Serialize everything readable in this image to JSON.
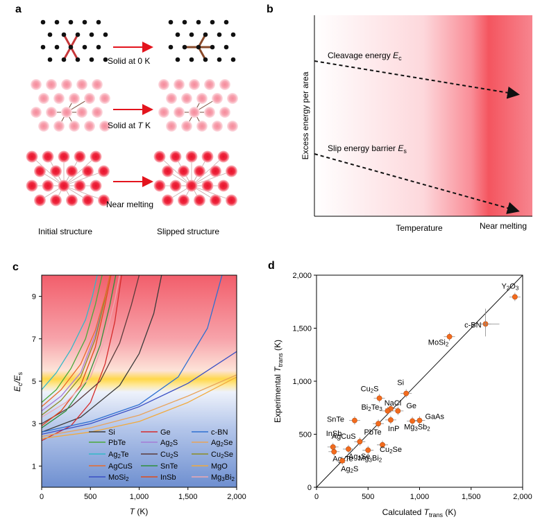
{
  "panel_a": {
    "label": "a",
    "rows": [
      {
        "caption_pre": "Solid at 0 K",
        "caption_var": "",
        "caption_post": ""
      },
      {
        "caption_pre": "Solid at ",
        "caption_var": "T",
        "caption_post": " K"
      },
      {
        "caption_pre": "Near melting",
        "caption_var": "",
        "caption_post": ""
      }
    ],
    "footer_left": "Initial structure",
    "footer_right": "Slipped  structure"
  },
  "panel_b": {
    "label": "b",
    "ylabel": "Excess energy per area",
    "xlabel": "Temperature",
    "xlabel_right": "Near melting",
    "cleavage_label": "Cleavage energy ",
    "cleavage_symbol": "E",
    "cleavage_sub": "c",
    "slip_label": "Slip energy barrier ",
    "slip_symbol": "E",
    "slip_sub": "s"
  },
  "panel_c": {
    "label": "c",
    "ylabel_main": "E",
    "ylabel_sub1": "c",
    "ylabel_sep": "/E",
    "ylabel_sub2": "s",
    "xlabel_var": "T",
    "xlabel_unit": " (K)",
    "xticks": [
      "0",
      "500",
      "1,000",
      "1,500",
      "2,000"
    ],
    "yticks": [
      "1",
      "3",
      "5",
      "7",
      "9"
    ],
    "colors": {
      "top": "#f26470",
      "band": "#ffd84a",
      "bottom": "#6e8fd0"
    }
  },
  "panel_d": {
    "label": "d",
    "xlabel_pre": "Calculated ",
    "xlabel_var": "T",
    "xlabel_sub": "trans",
    "xlabel_post": " (K)",
    "ylabel_pre": "Experimental ",
    "ylabel_var": "T",
    "ylabel_sub": "trans",
    "ylabel_post": " (K)",
    "xticks": [
      "0",
      "500",
      "1,000",
      "1,500",
      "2,000"
    ],
    "yticks": [
      "0",
      "500",
      "1,000",
      "1,500",
      "2,000"
    ],
    "marker_color": "#f26b1d"
  },
  "chart_data": [
    {
      "type": "line",
      "title": "",
      "xlabel": "T (K)",
      "ylabel": "Ec/Es",
      "xlim": [
        0,
        2000
      ],
      "ylim": [
        0,
        10
      ],
      "legend_placement": "bottom",
      "series": [
        {
          "name": "Si",
          "color": "#3a3a3a",
          "x": [
            0,
            400,
            800,
            1000,
            1150,
            1230
          ],
          "y": [
            2.6,
            3.3,
            4.8,
            6.3,
            8.2,
            10
          ]
        },
        {
          "name": "Ge",
          "color": "#d62b2b",
          "x": [
            0,
            300,
            500,
            650,
            750,
            820
          ],
          "y": [
            2.2,
            2.9,
            4.0,
            5.8,
            7.8,
            10
          ]
        },
        {
          "name": "c-BN",
          "color": "#2e6fd1",
          "x": [
            0,
            500,
            1000,
            1400,
            1700,
            1850
          ],
          "y": [
            2.6,
            3.1,
            3.9,
            5.2,
            7.5,
            10
          ]
        },
        {
          "name": "PbTe",
          "color": "#4aa83a",
          "x": [
            0,
            150,
            300,
            450,
            550,
            620
          ],
          "y": [
            4.0,
            4.6,
            5.6,
            7.0,
            8.6,
            10
          ]
        },
        {
          "name": "Ag2S",
          "color": "#a47ad6",
          "x": [
            0,
            200,
            400,
            550,
            640,
            700
          ],
          "y": [
            3.6,
            4.3,
            5.4,
            7.2,
            8.8,
            10
          ]
        },
        {
          "name": "Ag2Se",
          "color": "#e8a25a",
          "x": [
            0,
            500,
            1000,
            1500,
            2000
          ],
          "y": [
            2.4,
            2.8,
            3.4,
            4.3,
            5.3
          ]
        },
        {
          "name": "Ag2Te",
          "color": "#33b8c8",
          "x": [
            0,
            150,
            300,
            450,
            520,
            570
          ],
          "y": [
            4.6,
            5.4,
            6.5,
            7.9,
            9.0,
            10
          ]
        },
        {
          "name": "Cu2S",
          "color": "#5a3a3a",
          "x": [
            0,
            300,
            600,
            800,
            920,
            1000
          ],
          "y": [
            3.0,
            3.8,
            5.0,
            6.8,
            8.6,
            10
          ]
        },
        {
          "name": "Cu2Se",
          "color": "#8c8c24",
          "x": [
            0,
            200,
            400,
            550,
            640,
            700
          ],
          "y": [
            3.4,
            4.1,
            5.2,
            7.0,
            8.7,
            10
          ]
        },
        {
          "name": "AgCuS",
          "color": "#ea6a2a",
          "x": [
            0,
            200,
            400,
            550,
            650,
            700
          ],
          "y": [
            3.8,
            4.6,
            5.8,
            7.4,
            9.0,
            10
          ]
        },
        {
          "name": "SnTe",
          "color": "#2f8f3a",
          "x": [
            0,
            250,
            450,
            600,
            700,
            760
          ],
          "y": [
            2.8,
            3.6,
            4.9,
            6.7,
            8.6,
            10
          ]
        },
        {
          "name": "MgO",
          "color": "#f2a93b",
          "x": [
            0,
            500,
            1000,
            1500,
            2000
          ],
          "y": [
            2.3,
            2.6,
            3.1,
            4.0,
            5.2
          ]
        },
        {
          "name": "MoSi2",
          "color": "#3a4fc4",
          "x": [
            0,
            500,
            1000,
            1500,
            2000
          ],
          "y": [
            2.5,
            3.0,
            3.8,
            4.9,
            6.4
          ]
        },
        {
          "name": "InSb",
          "color": "#e04a1a",
          "x": [
            0,
            200,
            400,
            550,
            650,
            710
          ],
          "y": [
            2.9,
            3.6,
            4.8,
            6.6,
            8.6,
            10
          ]
        },
        {
          "name": "Mg3Bi2",
          "color": "#f0a8b0",
          "x": [
            0,
            250,
            500,
            650,
            750,
            800
          ],
          "y": [
            3.3,
            4.0,
            5.2,
            7.0,
            8.8,
            10
          ]
        }
      ]
    },
    {
      "type": "scatter",
      "title": "",
      "xlabel": "Calculated Ttrans (K)",
      "ylabel": "Experimental Ttrans (K)",
      "xlim": [
        0,
        2000
      ],
      "ylim": [
        0,
        2000
      ],
      "reference_line": "y = x",
      "series": [
        {
          "name": "",
          "points": [
            {
              "label": "Y2O3",
              "x": 1925,
              "y": 1795
            },
            {
              "label": "c-BN",
              "x": 1640,
              "y": 1540
            },
            {
              "label": "MoSi2",
              "x": 1290,
              "y": 1420
            },
            {
              "label": "Cu2S",
              "x": 610,
              "y": 840
            },
            {
              "label": "Si",
              "x": 870,
              "y": 885
            },
            {
              "label": "NaCl",
              "x": 720,
              "y": 740
            },
            {
              "label": "Bi2Te3",
              "x": 690,
              "y": 720
            },
            {
              "label": "Ge",
              "x": 790,
              "y": 720
            },
            {
              "label": "GaAs",
              "x": 1000,
              "y": 630
            },
            {
              "label": "Mg3Sb2",
              "x": 930,
              "y": 625
            },
            {
              "label": "InP",
              "x": 720,
              "y": 635
            },
            {
              "label": "SnTe",
              "x": 370,
              "y": 630
            },
            {
              "label": "PbTe",
              "x": 600,
              "y": 600
            },
            {
              "label": "InSb",
              "x": 420,
              "y": 430
            },
            {
              "label": "Cu2Se",
              "x": 640,
              "y": 400
            },
            {
              "label": "AgCuS",
              "x": 160,
              "y": 380
            },
            {
              "label": "Ag2Te",
              "x": 170,
              "y": 335
            },
            {
              "label": "Ag2Se",
              "x": 310,
              "y": 360
            },
            {
              "label": "Mg3Bi2",
              "x": 500,
              "y": 350
            },
            {
              "label": "Ag2S",
              "x": 250,
              "y": 250
            }
          ]
        }
      ]
    }
  ]
}
